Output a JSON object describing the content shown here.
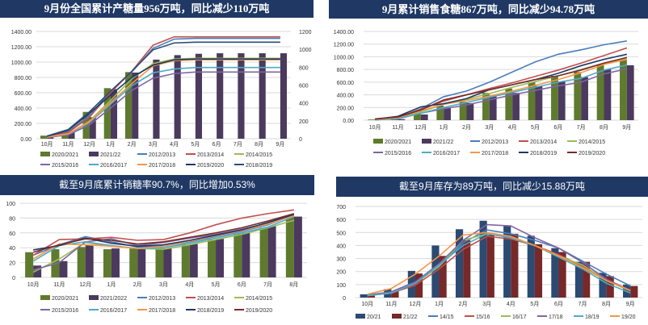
{
  "charts": [
    {
      "title": "9月份全国累计产糖量956万吨，同比减少110万吨",
      "type": "bar+line",
      "categories": [
        "10月",
        "11月",
        "12月",
        "1月",
        "2月",
        "3月",
        "4月",
        "5月",
        "6月",
        "7月",
        "8月",
        "9月"
      ],
      "y_left": {
        "min": 0,
        "max": 1400,
        "step": 200,
        "ticks": [
          "0.00",
          "200.00",
          "400.00",
          "600.00",
          "800.00",
          "1000.00",
          "1200.00",
          "1400.00"
        ]
      },
      "y_right": {
        "min": 0,
        "max": 1200,
        "step": 200,
        "ticks": [
          "0",
          "200",
          "400",
          "600",
          "800",
          "1000",
          "1200"
        ]
      },
      "grid": true,
      "legend": "bottom",
      "bars": [
        {
          "name": "2020/2021",
          "color": "#5e7a2e",
          "axis": "left",
          "values": [
            40,
            100,
            350,
            660,
            870,
            null,
            null,
            null,
            null,
            null,
            null,
            null
          ]
        },
        {
          "name": "2021/22",
          "color": "#4b3a5e",
          "axis": "right",
          "values": [
            30,
            70,
            240,
            555,
            740,
            885,
            935,
            950,
            956,
            956,
            956,
            956
          ]
        }
      ],
      "lines": [
        {
          "name": "2012/2013",
          "color": "#4a7ebb",
          "values": [
            30,
            90,
            300,
            620,
            870,
            1180,
            1300,
            1310,
            1310,
            1310,
            1310,
            1310
          ]
        },
        {
          "name": "2013/2014",
          "color": "#c0504d",
          "values": [
            30,
            80,
            280,
            600,
            880,
            1220,
            1330,
            1330,
            1330,
            1330,
            1330,
            1330
          ]
        },
        {
          "name": "2014/2015",
          "color": "#9bbb59",
          "values": [
            20,
            60,
            230,
            500,
            780,
            980,
            1040,
            1050,
            1050,
            1050,
            1050,
            1050
          ]
        },
        {
          "name": "2015/2016",
          "color": "#8064a2",
          "values": [
            15,
            50,
            180,
            400,
            630,
            790,
            850,
            870,
            870,
            870,
            870,
            870
          ]
        },
        {
          "name": "2016/2017",
          "color": "#4bacc6",
          "values": [
            20,
            60,
            210,
            450,
            690,
            860,
            910,
            930,
            930,
            930,
            930,
            930
          ]
        },
        {
          "name": "2017/2018",
          "color": "#f79646",
          "values": [
            20,
            65,
            220,
            470,
            720,
            950,
            1020,
            1030,
            1030,
            1030,
            1030,
            1030
          ]
        },
        {
          "name": "2019/2020",
          "color": "#1f3864",
          "values": [
            30,
            110,
            330,
            570,
            800,
            960,
            1030,
            1040,
            1040,
            1040,
            1040,
            1040
          ]
        },
        {
          "name": "2018/2019",
          "color": "#2c4d75",
          "values": [
            35,
            120,
            350,
            620,
            880,
            1160,
            1250,
            1260,
            1260,
            1260,
            1260,
            1260
          ]
        }
      ]
    },
    {
      "title": "9月累计销售食糖867万吨，同比减少94.78万吨",
      "type": "bar+line",
      "categories": [
        "10月",
        "11月",
        "12月",
        "1月",
        "2月",
        "3月",
        "4月",
        "5月",
        "6月",
        "7月",
        "8月",
        "9月"
      ],
      "y_left": {
        "min": 0,
        "max": 1400,
        "step": 200,
        "ticks": [
          "0.00",
          "200.00",
          "400.00",
          "600.00",
          "800.00",
          "1000.00",
          "1200.00",
          "1400.00"
        ]
      },
      "grid": true,
      "legend": "bottom",
      "bars": [
        {
          "name": "2020/2021",
          "color": "#5e7a2e",
          "axis": "left",
          "values": [
            10,
            20,
            100,
            230,
            290,
            430,
            500,
            600,
            700,
            760,
            880,
            960
          ]
        },
        {
          "name": "2021/22",
          "color": "#4b3a5e",
          "axis": "left",
          "values": [
            5,
            15,
            90,
            200,
            270,
            390,
            430,
            540,
            610,
            680,
            800,
            867
          ]
        }
      ],
      "lines": [
        {
          "name": "2012/2013",
          "color": "#4a7ebb",
          "values": [
            10,
            40,
            180,
            370,
            460,
            600,
            760,
            920,
            1040,
            1110,
            1190,
            1250
          ]
        },
        {
          "name": "2013/2014",
          "color": "#c0504d",
          "values": [
            15,
            50,
            170,
            300,
            400,
            500,
            590,
            690,
            790,
            900,
            1020,
            1140
          ]
        },
        {
          "name": "2014/2015",
          "color": "#9bbb59",
          "values": [
            10,
            30,
            130,
            250,
            330,
            420,
            520,
            610,
            700,
            800,
            900,
            980
          ]
        },
        {
          "name": "2015/2016",
          "color": "#8064a2",
          "values": [
            5,
            20,
            110,
            180,
            240,
            320,
            400,
            470,
            540,
            600,
            730,
            810
          ]
        },
        {
          "name": "2016/2017",
          "color": "#4bacc6",
          "values": [
            5,
            25,
            110,
            200,
            280,
            360,
            440,
            520,
            600,
            660,
            790,
            870
          ]
        },
        {
          "name": "2017/2018",
          "color": "#f79646",
          "values": [
            10,
            40,
            150,
            250,
            310,
            380,
            460,
            550,
            640,
            750,
            880,
            960
          ]
        },
        {
          "name": "2018/2019",
          "color": "#1f3864",
          "values": [
            15,
            60,
            210,
            260,
            340,
            480,
            560,
            640,
            740,
            860,
            960,
            1040
          ]
        },
        {
          "name": "2019/2020",
          "color": "#772c2a",
          "values": [
            20,
            50,
            160,
            320,
            400,
            480,
            560,
            640,
            700,
            790,
            900,
            990
          ]
        }
      ]
    },
    {
      "title": "截至9月底累计销糖率90.7%，同比增加0.53%",
      "type": "bar+line",
      "categories": [
        "10月",
        "11月",
        "12月",
        "1月",
        "2月",
        "3月",
        "4月",
        "5月",
        "6月",
        "7月",
        "8月"
      ],
      "y_left": {
        "min": 0,
        "max": 100,
        "step": 20,
        "ticks": [
          "0",
          "20",
          "40",
          "60",
          "80",
          "100"
        ]
      },
      "grid": true,
      "legend": "bottom",
      "bars": [
        {
          "name": "2020/2021",
          "color": "#5e7a2e",
          "axis": "left",
          "values": [
            34,
            38,
            41,
            38,
            39,
            39,
            44,
            51,
            59,
            67,
            81
          ]
        },
        {
          "name": "2021/2022",
          "color": "#4b3a5e",
          "axis": "left",
          "values": [
            16,
            22,
            44,
            39,
            38,
            39,
            45,
            52,
            60,
            69,
            82
          ]
        }
      ],
      "lines": [
        {
          "name": "2012/2013",
          "color": "#4a7ebb",
          "values": [
            30,
            44,
            55,
            48,
            41,
            42,
            48,
            55,
            62,
            71,
            84
          ]
        },
        {
          "name": "2013/2014",
          "color": "#c0504d",
          "values": [
            30,
            51,
            52,
            54,
            50,
            51,
            60,
            71,
            80,
            86,
            91
          ]
        },
        {
          "name": "2014/2015",
          "color": "#9bbb59",
          "values": [
            7,
            25,
            47,
            42,
            39,
            38,
            44,
            51,
            58,
            67,
            77
          ]
        },
        {
          "name": "2015/2016",
          "color": "#8064a2",
          "values": [
            10,
            20,
            48,
            52,
            43,
            47,
            53,
            58,
            65,
            73,
            84
          ]
        },
        {
          "name": "2016/2017",
          "color": "#4bacc6",
          "values": [
            22,
            43,
            48,
            43,
            39,
            40,
            46,
            53,
            60,
            68,
            82
          ]
        },
        {
          "name": "2017/2018",
          "color": "#f79646",
          "values": [
            25,
            45,
            44,
            42,
            39,
            42,
            49,
            56,
            63,
            72,
            83
          ]
        },
        {
          "name": "2018/2019",
          "color": "#1f3864",
          "values": [
            37,
            43,
            53,
            46,
            42,
            44,
            50,
            57,
            64,
            74,
            85
          ]
        },
        {
          "name": "2019/2020",
          "color": "#772c2a",
          "values": [
            34,
            44,
            52,
            50,
            45,
            48,
            54,
            60,
            67,
            76,
            86
          ]
        }
      ]
    },
    {
      "title": "截至9月库存为89万吨，同比减少15.88万吨",
      "type": "bar+line",
      "categories": [
        "10月",
        "11月",
        "12月",
        "1月",
        "2月",
        "3月",
        "4月",
        "5月",
        "6月",
        "7月",
        "8月",
        "9月"
      ],
      "y_left": {
        "min": 0,
        "max": 700,
        "step": 100,
        "ticks": [
          "0",
          "100",
          "200",
          "300",
          "400",
          "500",
          "600",
          "700"
        ]
      },
      "grid": true,
      "legend": "bottom",
      "bars": [
        {
          "name": "20/21",
          "color": "#2c4a72",
          "axis": "left",
          "values": [
            25,
            65,
            205,
            400,
            525,
            590,
            555,
            475,
            380,
            275,
            190,
            100
          ]
        },
        {
          "name": "21/22",
          "color": "#772828",
          "axis": "left",
          "values": [
            15,
            50,
            185,
            320,
            440,
            480,
            490,
            410,
            350,
            275,
            165,
            89
          ]
        }
      ],
      "lines": [
        {
          "name": "14/15",
          "color": "#4a7ebb",
          "values": [
            20,
            40,
            110,
            240,
            420,
            520,
            490,
            440,
            380,
            280,
            180,
            90
          ]
        },
        {
          "name": "15/16",
          "color": "#c0504d",
          "values": [
            15,
            35,
            95,
            220,
            370,
            470,
            450,
            400,
            330,
            240,
            140,
            55
          ]
        },
        {
          "name": "16/17",
          "color": "#9bbb59",
          "values": [
            15,
            35,
            110,
            240,
            440,
            490,
            460,
            400,
            320,
            250,
            130,
            50
          ]
        },
        {
          "name": "17/18",
          "color": "#8064a2",
          "values": [
            20,
            45,
            120,
            260,
            440,
            560,
            550,
            460,
            380,
            270,
            140,
            50
          ]
        },
        {
          "name": "18/19",
          "color": "#4bacc6",
          "values": [
            15,
            35,
            110,
            250,
            400,
            490,
            460,
            400,
            310,
            220,
            110,
            35
          ]
        },
        {
          "name": "19/20",
          "color": "#f79646",
          "values": [
            25,
            70,
            180,
            320,
            480,
            500,
            470,
            400,
            320,
            230,
            130,
            55
          ]
        }
      ]
    }
  ]
}
